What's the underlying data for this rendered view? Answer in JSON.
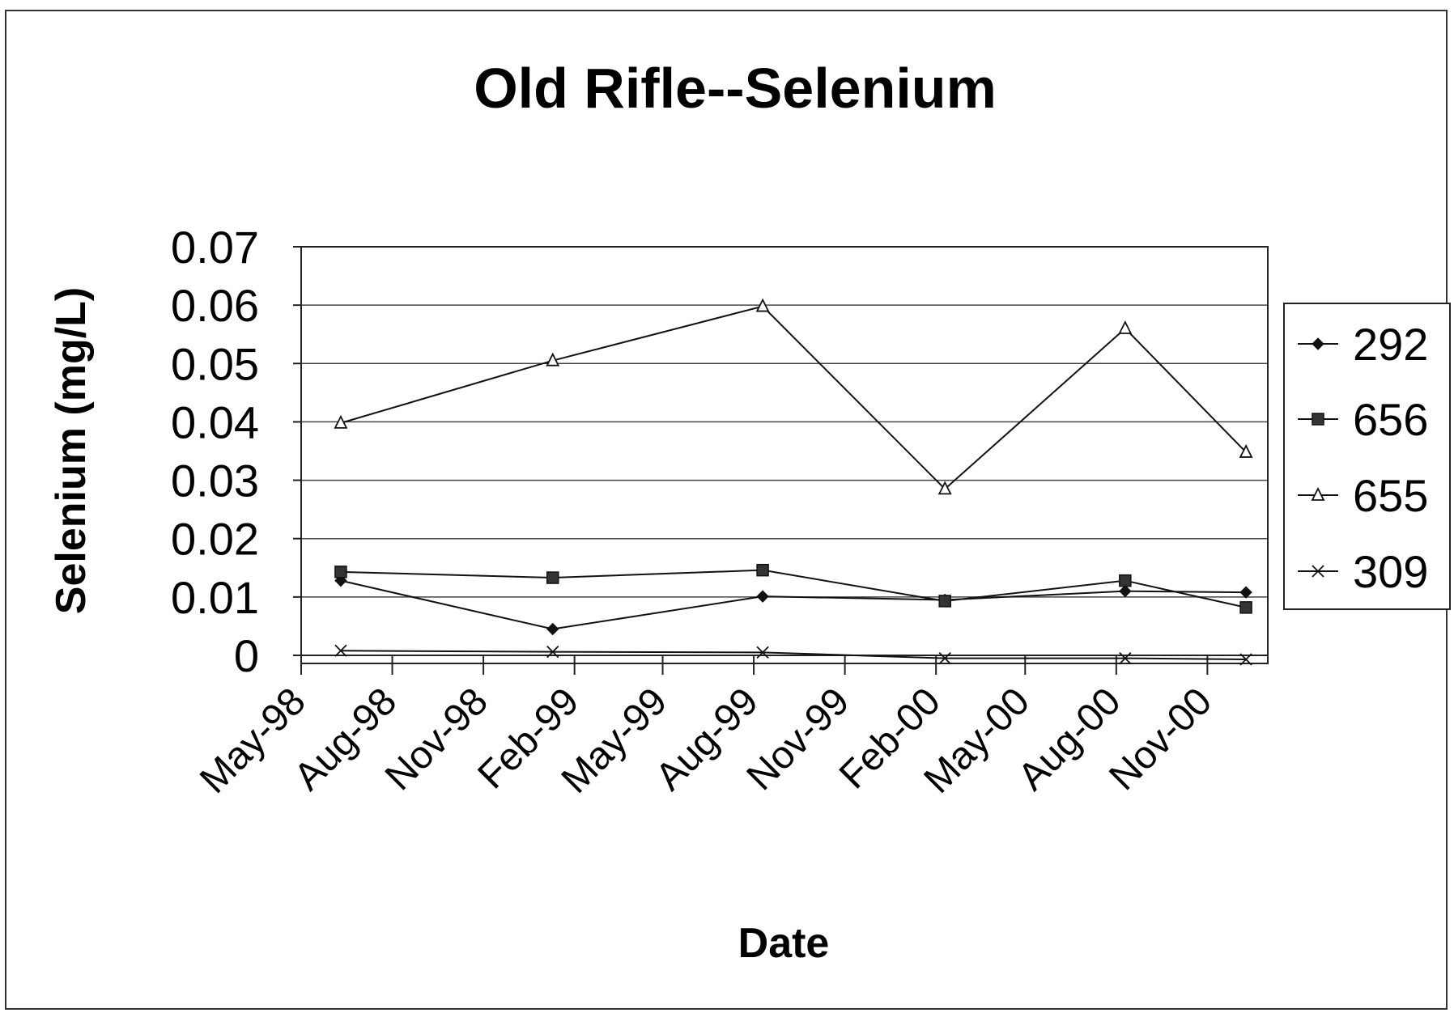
{
  "chart_data": {
    "type": "line",
    "title": "Old Rifle--Selenium",
    "xlabel": "Date",
    "ylabel": "Selenium (mg/L)",
    "ylim": [
      0,
      0.07
    ],
    "yticks": [
      "0",
      "0.01",
      "0.02",
      "0.03",
      "0.04",
      "0.05",
      "0.06",
      "0.07"
    ],
    "xlim": [
      "1998-05-01",
      "2001-01-01"
    ],
    "xticks": [
      "May-98",
      "Aug-98",
      "Nov-98",
      "Feb-99",
      "May-99",
      "Aug-99",
      "Nov-99",
      "Feb-00",
      "May-00",
      "Aug-00",
      "Nov-00"
    ],
    "grid": "horizontal",
    "legend_position": "right",
    "series": [
      {
        "name": "292",
        "marker": "diamond",
        "points": [
          {
            "x": "1998-06-10",
            "y": 0.0128
          },
          {
            "x": "1999-01-10",
            "y": 0.0045
          },
          {
            "x": "1999-08-10",
            "y": 0.0101
          },
          {
            "x": "2000-02-10",
            "y": 0.0095
          },
          {
            "x": "2000-08-10",
            "y": 0.011
          },
          {
            "x": "2000-12-10",
            "y": 0.0108
          }
        ]
      },
      {
        "name": "656",
        "marker": "square",
        "points": [
          {
            "x": "1998-06-10",
            "y": 0.0143
          },
          {
            "x": "1999-01-10",
            "y": 0.0133
          },
          {
            "x": "1999-08-10",
            "y": 0.0146
          },
          {
            "x": "2000-02-10",
            "y": 0.0093
          },
          {
            "x": "2000-08-10",
            "y": 0.0128
          },
          {
            "x": "2000-12-10",
            "y": 0.0082
          }
        ]
      },
      {
        "name": "655",
        "marker": "triangle",
        "points": [
          {
            "x": "1998-06-10",
            "y": 0.0398
          },
          {
            "x": "1999-01-10",
            "y": 0.0505
          },
          {
            "x": "1999-08-10",
            "y": 0.0598
          },
          {
            "x": "2000-02-10",
            "y": 0.0285
          },
          {
            "x": "2000-08-10",
            "y": 0.056
          },
          {
            "x": "2000-12-10",
            "y": 0.0348
          }
        ]
      },
      {
        "name": "309",
        "marker": "x",
        "points": [
          {
            "x": "1998-06-10",
            "y": 0.0008
          },
          {
            "x": "1999-01-10",
            "y": 0.0006
          },
          {
            "x": "1999-08-10",
            "y": 0.0005
          },
          {
            "x": "2000-02-10",
            "y": -0.0005
          },
          {
            "x": "2000-08-10",
            "y": -0.0005
          },
          {
            "x": "2000-12-10",
            "y": -0.0007
          }
        ]
      }
    ]
  }
}
